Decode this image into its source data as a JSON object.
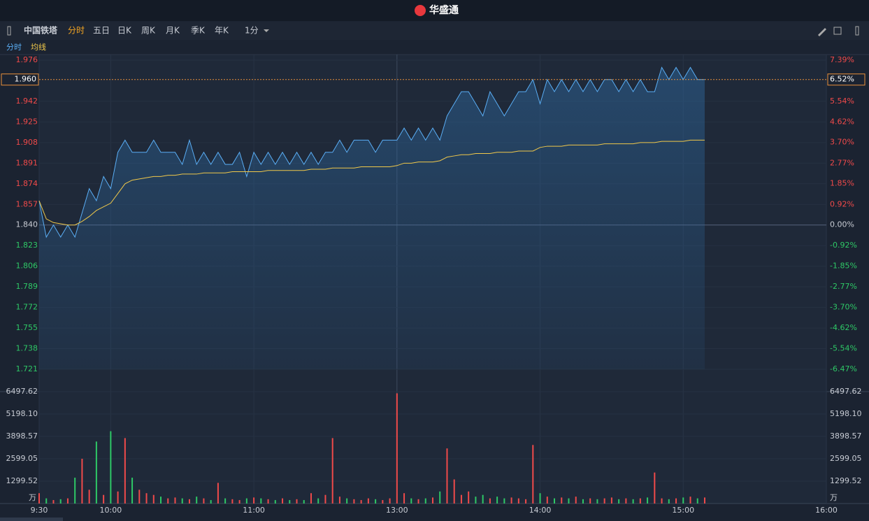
{
  "header": {
    "logo": "华盛通",
    "stock": "中国铁塔",
    "tabs": [
      "分时",
      "五日",
      "日K",
      "周K",
      "月K",
      "季K",
      "年K"
    ],
    "period": "1分"
  },
  "chart_data": {
    "type": "line",
    "x": [
      0,
      3,
      6,
      9,
      12,
      15,
      18,
      21,
      24,
      27,
      30,
      33,
      36,
      39,
      42,
      45,
      48,
      51,
      54,
      57,
      60,
      63,
      66,
      69,
      72,
      75,
      78,
      81,
      84,
      87,
      90,
      93,
      96,
      99,
      102,
      105,
      108,
      111,
      114,
      117,
      120,
      123,
      126,
      129,
      132,
      135,
      138,
      141,
      144,
      147,
      150,
      153,
      156,
      159,
      162,
      165,
      168,
      171,
      174,
      177,
      180,
      183,
      186,
      189,
      192,
      195,
      198,
      201,
      204,
      207,
      210,
      213,
      216,
      219,
      222,
      225,
      228,
      231,
      234,
      237,
      240,
      243,
      246,
      249,
      252,
      255,
      258,
      261,
      264,
      267,
      270,
      273,
      276,
      279
    ],
    "xlim": [
      0,
      330
    ],
    "xticks": [
      {
        "value": 0,
        "label": "9:30"
      },
      {
        "value": 30,
        "label": "10:00"
      },
      {
        "value": 90,
        "label": "11:00"
      },
      {
        "value": 150,
        "label": "13:00"
      },
      {
        "value": 210,
        "label": "14:00"
      },
      {
        "value": 270,
        "label": "15:00"
      },
      {
        "value": 330,
        "label": "16:00"
      }
    ],
    "series": [
      {
        "name": "分时",
        "color": "#5aaef5",
        "values": [
          1.86,
          1.83,
          1.84,
          1.83,
          1.84,
          1.83,
          1.85,
          1.87,
          1.86,
          1.88,
          1.87,
          1.9,
          1.91,
          1.9,
          1.9,
          1.9,
          1.91,
          1.9,
          1.9,
          1.9,
          1.89,
          1.91,
          1.89,
          1.9,
          1.89,
          1.9,
          1.89,
          1.89,
          1.9,
          1.88,
          1.9,
          1.89,
          1.9,
          1.89,
          1.9,
          1.89,
          1.9,
          1.89,
          1.9,
          1.89,
          1.9,
          1.9,
          1.91,
          1.9,
          1.91,
          1.91,
          1.91,
          1.9,
          1.91,
          1.91,
          1.91,
          1.92,
          1.91,
          1.92,
          1.91,
          1.92,
          1.91,
          1.93,
          1.94,
          1.95,
          1.95,
          1.94,
          1.93,
          1.95,
          1.94,
          1.93,
          1.94,
          1.95,
          1.95,
          1.96,
          1.94,
          1.96,
          1.95,
          1.96,
          1.95,
          1.96,
          1.95,
          1.96,
          1.95,
          1.96,
          1.96,
          1.95,
          1.96,
          1.95,
          1.96,
          1.95,
          1.95,
          1.97,
          1.96,
          1.97,
          1.96,
          1.97,
          1.96,
          1.96
        ]
      },
      {
        "name": "均线",
        "color": "#f0c84a",
        "values": [
          1.86,
          1.845,
          1.842,
          1.841,
          1.84,
          1.84,
          1.843,
          1.847,
          1.852,
          1.855,
          1.858,
          1.866,
          1.874,
          1.877,
          1.878,
          1.879,
          1.88,
          1.88,
          1.881,
          1.881,
          1.882,
          1.882,
          1.882,
          1.883,
          1.883,
          1.883,
          1.883,
          1.884,
          1.884,
          1.884,
          1.884,
          1.884,
          1.885,
          1.885,
          1.885,
          1.885,
          1.885,
          1.885,
          1.886,
          1.886,
          1.886,
          1.887,
          1.887,
          1.887,
          1.887,
          1.888,
          1.888,
          1.888,
          1.888,
          1.888,
          1.889,
          1.891,
          1.891,
          1.892,
          1.892,
          1.892,
          1.893,
          1.896,
          1.897,
          1.898,
          1.898,
          1.899,
          1.899,
          1.899,
          1.9,
          1.9,
          1.9,
          1.901,
          1.901,
          1.901,
          1.904,
          1.905,
          1.905,
          1.905,
          1.906,
          1.906,
          1.906,
          1.906,
          1.906,
          1.907,
          1.907,
          1.907,
          1.907,
          1.907,
          1.908,
          1.908,
          1.908,
          1.909,
          1.909,
          1.909,
          1.909,
          1.91,
          1.91,
          1.91
        ]
      }
    ],
    "ylim": [
      1.721,
      1.976
    ],
    "yticks": [
      1.976,
      1.942,
      1.925,
      1.908,
      1.891,
      1.874,
      1.857,
      {
        "value": 1.84,
        "label": "1.840"
      },
      1.823,
      1.806,
      1.789,
      1.772,
      1.755,
      1.738,
      1.721
    ],
    "y2lim": [
      -6.47,
      7.39
    ],
    "y2ticks": [
      {
        "value": 7.39,
        "label": "7.39%"
      },
      {
        "value": 5.54,
        "label": "5.54%"
      },
      {
        "value": 4.62,
        "label": "4.62%"
      },
      {
        "value": 3.7,
        "label": "3.70%"
      },
      {
        "value": 2.77,
        "label": "2.77%"
      },
      {
        "value": 1.85,
        "label": "1.85%"
      },
      {
        "value": 0.92,
        "label": "0.92%"
      },
      {
        "value": 0,
        "label": "0.00%"
      },
      {
        "value": -0.92,
        "label": "-0.92%"
      },
      {
        "value": -1.85,
        "label": "-1.85%"
      },
      {
        "value": -2.77,
        "label": "-2.77%"
      },
      {
        "value": -3.7,
        "label": "-3.70%"
      },
      {
        "value": -4.62,
        "label": "-4.62%"
      },
      {
        "value": -5.54,
        "label": "-5.54%"
      },
      {
        "value": -6.47,
        "label": "-6.47%"
      }
    ],
    "current": {
      "value": 1.96,
      "label": "1.960",
      "pct": {
        "value": 6.52,
        "label": "6.52%"
      }
    },
    "up_color": "#f04a4a",
    "down_color": "#2ec866",
    "volume": {
      "unit": "万",
      "ylim": [
        0,
        6497.62
      ],
      "yticks": [
        6497.62,
        {
          "value": 5198.1,
          "label": "5198.10"
        },
        3898.57,
        2599.05,
        1299.52
      ],
      "values": [
        600,
        300,
        200,
        250,
        300,
        1500,
        2600,
        800,
        3600,
        500,
        4200,
        700,
        3800,
        1500,
        800,
        600,
        500,
        400,
        300,
        350,
        300,
        250,
        400,
        300,
        200,
        1200,
        300,
        250,
        200,
        300,
        350,
        300,
        250,
        200,
        300,
        200,
        250,
        200,
        600,
        300,
        500,
        3800,
        400,
        300,
        250,
        200,
        300,
        250,
        200,
        300,
        6400,
        600,
        300,
        250,
        300,
        350,
        700,
        3200,
        1400,
        500,
        700,
        400,
        500,
        300,
        400,
        300,
        350,
        300,
        250,
        3400,
        600,
        400,
        300,
        350,
        300,
        400,
        250,
        300,
        250,
        300,
        350,
        250,
        300,
        250,
        300,
        350,
        1800,
        300,
        250,
        300,
        350,
        400,
        300,
        350
      ]
    }
  }
}
